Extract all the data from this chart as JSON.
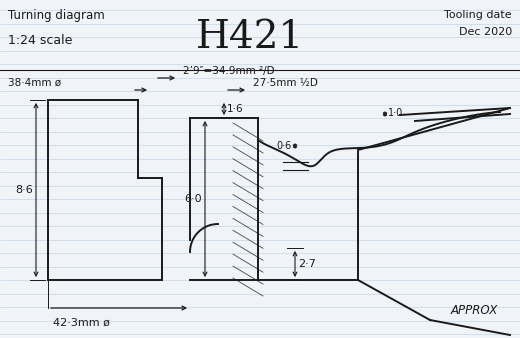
{
  "title": "H421",
  "sub_left1": "Turning diagram",
  "sub_left2": "1:24 scale",
  "sub_right1": "Tooling date",
  "sub_right2": "Dec 2020",
  "bg_color": "#f0f4f8",
  "line_color": "#1a1a1a",
  "ruled_color": "#c5d5e5",
  "approx": "APPROX"
}
